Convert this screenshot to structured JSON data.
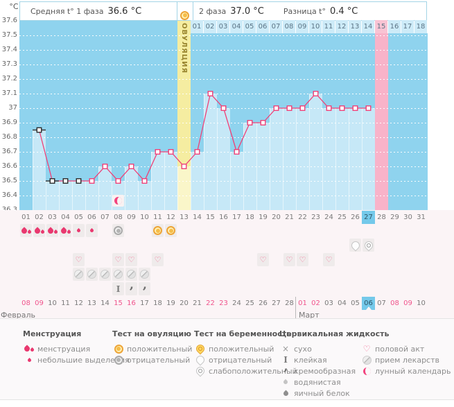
{
  "header": {
    "unit_label": "°C",
    "avg_label": "Средняя t° 1 фаза",
    "avg_value": "36.6 °C",
    "phase2_label": "2 фаза",
    "phase2_value": "37.0 °C",
    "diff_label": "Разница t°",
    "diff_value": "0.4 °C"
  },
  "chart_data": {
    "type": "line",
    "title": "Basal body temperature cycle chart",
    "ylabel": "°C",
    "ylim": [
      36.3,
      37.6
    ],
    "y_ticks": [
      "37.6",
      "37.5",
      "37.4",
      "37.3",
      "37.2",
      "37.1",
      "37",
      "36.9",
      "36.8",
      "36.7",
      "36.6",
      "36.5",
      "36.4",
      "36.3"
    ],
    "days": [
      "01",
      "02",
      "03",
      "04",
      "05",
      "06",
      "07",
      "08",
      "09",
      "10",
      "11",
      "12",
      "13",
      "14",
      "15",
      "16",
      "17",
      "18",
      "19",
      "20",
      "21",
      "22",
      "23",
      "24",
      "25",
      "26",
      "27",
      "28",
      "29",
      "30",
      "31"
    ],
    "temp_days": [
      2,
      3,
      4,
      5,
      6,
      7,
      8,
      9,
      10,
      11,
      12,
      13,
      14,
      15,
      16,
      17,
      18,
      19,
      20,
      21,
      22,
      23,
      24,
      25,
      26,
      27
    ],
    "temp_values": [
      36.85,
      36.5,
      36.5,
      36.5,
      36.5,
      36.6,
      36.5,
      36.6,
      36.5,
      36.7,
      36.7,
      36.6,
      36.7,
      37.1,
      37.0,
      36.7,
      36.9,
      36.9,
      37.0,
      37.0,
      37.0,
      37.1,
      37.0,
      37.0,
      37.0,
      37.0
    ],
    "black_marker_days": [
      2,
      3,
      4,
      5
    ],
    "black_dash_days": [
      2,
      3
    ],
    "ovulation": {
      "day": 13,
      "label": "ОВУЛЯЦИЯ"
    },
    "dpo": {
      "start_day": 14,
      "labels": [
        "01",
        "02",
        "03",
        "04",
        "05",
        "06",
        "07",
        "08",
        "09",
        "10",
        "11",
        "12",
        "13",
        "14",
        "15",
        "16",
        "17",
        "18"
      ],
      "highlight_label": "15"
    },
    "highlight_column_day": 28,
    "today_day": 27,
    "moon_icon_day": 8,
    "grid": "horizontal-dotted"
  },
  "rows": {
    "markers": {
      "menstruation_days": [
        1,
        2,
        3,
        4
      ],
      "spotting_days": [
        5,
        6
      ],
      "ovulation_test_negative_days": [
        8
      ],
      "ovulation_test_positive_days": [
        11,
        12
      ],
      "pregnancy_test_negative_days": [
        26
      ],
      "pregnancy_test_weak_days": [
        27
      ],
      "intercourse_days": [
        5,
        8,
        9,
        11,
        19,
        21,
        22,
        24
      ],
      "medication_days": [
        5,
        6,
        7,
        8,
        9,
        10
      ],
      "cervical_sticky_days": [
        8
      ],
      "cervical_creamy_days": [
        9,
        10
      ]
    },
    "dates": [
      "08",
      "09",
      "10",
      "11",
      "12",
      "13",
      "14",
      "15",
      "16",
      "17",
      "18",
      "19",
      "20",
      "21",
      "22",
      "23",
      "24",
      "25",
      "26",
      "27",
      "28",
      "01",
      "02",
      "03",
      "04",
      "05",
      "06",
      "07",
      "08",
      "09",
      "10"
    ],
    "weekend_indices": [
      0,
      1,
      7,
      8,
      14,
      15,
      21,
      22,
      28,
      29
    ],
    "today_index": 26,
    "months": {
      "first": "Февраль",
      "second": "Март",
      "second_start_index": 21
    }
  },
  "legend": {
    "columns": [
      {
        "header": "Менструация",
        "items": [
          {
            "icon": "menstruation-icon",
            "label": "менструация"
          },
          {
            "icon": "spotting-icon",
            "label": "небольшие выделения"
          }
        ]
      },
      {
        "header": "Тест на овуляцию",
        "items": [
          {
            "icon": "ovulation-positive-icon",
            "label": "положительный"
          },
          {
            "icon": "ovulation-negative-icon",
            "label": "отрицательный"
          }
        ]
      },
      {
        "header": "Тест на беременность",
        "items": [
          {
            "icon": "pregnancy-positive-icon",
            "label": "положительный"
          },
          {
            "icon": "pregnancy-negative-icon",
            "label": "отрицательный"
          },
          {
            "icon": "pregnancy-weak-icon",
            "label": "слабоположительный"
          }
        ]
      },
      {
        "header": "Цервикальная жидкость",
        "items": [
          {
            "icon": "dry-icon",
            "label": "сухо"
          },
          {
            "icon": "sticky-icon",
            "label": "клейкая"
          },
          {
            "icon": "creamy-icon",
            "label": "кремообразная"
          },
          {
            "icon": "watery-icon",
            "label": "водянистая"
          },
          {
            "icon": "eggwhite-icon",
            "label": "яичный белок"
          }
        ]
      },
      {
        "header": "",
        "items": [
          {
            "icon": "intercourse-icon",
            "label": "половой акт"
          },
          {
            "icon": "medication-icon",
            "label": "прием лекарств"
          },
          {
            "icon": "lunar-icon",
            "label": "лунный календарь"
          }
        ]
      }
    ]
  },
  "colors": {
    "curve": "#EF4077",
    "chart_blue": "#8FD3EE",
    "bar_blue": "#C6E8F7",
    "ovulation_column": "#F5EDA1",
    "ovulation_bar": "#FAF6C9",
    "pink_column": "#F8B3C9",
    "dpo_cell": "#CDEBF8",
    "dpo_pink_cell": "#F9C3D3",
    "today_blue": "#74C9EA",
    "weekend_red": "#F0548C",
    "drop_pink": "#E9386F"
  }
}
